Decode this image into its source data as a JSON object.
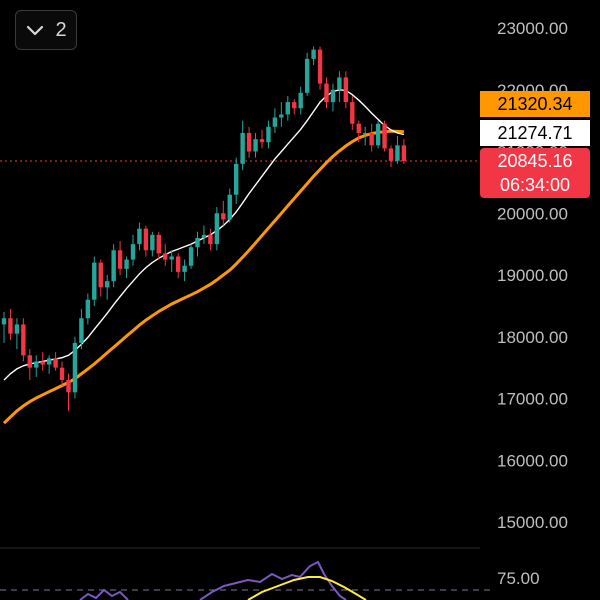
{
  "toolbar": {
    "indicator_count": "2",
    "collapse_icon": "chevron-down-icon"
  },
  "price_labels": {
    "ma_slow": {
      "value": "21320.34",
      "bg": "#ff9800",
      "fg": "#000000"
    },
    "ma_fast": {
      "value": "21274.71",
      "bg": "#ffffff",
      "fg": "#000000"
    },
    "last_price": {
      "value": "20845.16",
      "bg": "#f23645",
      "fg": "#ffffff"
    },
    "countdown": {
      "value": "06:34:00",
      "bg": "#f23645",
      "fg": "#ffffff"
    }
  },
  "colors": {
    "up": "#26a69a",
    "down": "#f23645",
    "ma_fast": "#ffffff",
    "ma_slow": "#ff9800",
    "osc_main": "#7e57c2",
    "osc_signal": "#ffeb3b"
  },
  "chart_data": {
    "type": "candlestick",
    "y_ticks": [
      "23000.00",
      "22000.00",
      "21000.00",
      "20000.00",
      "19000.00",
      "18000.00",
      "17000.00",
      "16000.00",
      "15000.00"
    ],
    "ylim": [
      15000,
      23000
    ],
    "last_price": 20845.16,
    "candles": [
      [
        18200,
        18400,
        17900,
        18300
      ],
      [
        18300,
        18450,
        17950,
        18050
      ],
      [
        18050,
        18300,
        17800,
        18200
      ],
      [
        18200,
        18300,
        17600,
        17700
      ],
      [
        17700,
        17800,
        17300,
        17500
      ],
      [
        17500,
        17700,
        17350,
        17600
      ],
      [
        17600,
        17750,
        17450,
        17550
      ],
      [
        17550,
        17700,
        17400,
        17650
      ],
      [
        17650,
        17750,
        17450,
        17500
      ],
      [
        17500,
        17600,
        17200,
        17300
      ],
      [
        17300,
        17400,
        16800,
        17100
      ],
      [
        17100,
        18000,
        17000,
        17900
      ],
      [
        17900,
        18450,
        17800,
        18300
      ],
      [
        18300,
        18700,
        18200,
        18600
      ],
      [
        18600,
        19300,
        18500,
        19200
      ],
      [
        19200,
        19250,
        18650,
        18800
      ],
      [
        18800,
        19000,
        18600,
        18900
      ],
      [
        18900,
        19500,
        18800,
        19400
      ],
      [
        19400,
        19550,
        19000,
        19100
      ],
      [
        19100,
        19300,
        18950,
        19250
      ],
      [
        19250,
        19650,
        19150,
        19500
      ],
      [
        19500,
        19850,
        19400,
        19750
      ],
      [
        19750,
        19800,
        19300,
        19400
      ],
      [
        19400,
        19700,
        19300,
        19650
      ],
      [
        19650,
        19700,
        19250,
        19350
      ],
      [
        19350,
        19500,
        19150,
        19250
      ],
      [
        19250,
        19400,
        19050,
        19300
      ],
      [
        19300,
        19350,
        18950,
        19050
      ],
      [
        19050,
        19250,
        18900,
        19150
      ],
      [
        19150,
        19500,
        19100,
        19450
      ],
      [
        19450,
        19700,
        19300,
        19600
      ],
      [
        19600,
        19800,
        19500,
        19650
      ],
      [
        19650,
        19750,
        19400,
        19500
      ],
      [
        19500,
        20100,
        19400,
        20000
      ],
      [
        20000,
        20200,
        19800,
        19900
      ],
      [
        19900,
        20400,
        19850,
        20300
      ],
      [
        20300,
        20900,
        20150,
        20800
      ],
      [
        20800,
        21500,
        20700,
        21300
      ],
      [
        21300,
        21400,
        20900,
        21000
      ],
      [
        21000,
        21300,
        20900,
        21200
      ],
      [
        21200,
        21350,
        21050,
        21150
      ],
      [
        21150,
        21500,
        21050,
        21400
      ],
      [
        21400,
        21700,
        21300,
        21550
      ],
      [
        21550,
        21800,
        21400,
        21600
      ],
      [
        21600,
        21900,
        21500,
        21800
      ],
      [
        21800,
        21850,
        21600,
        21700
      ],
      [
        21700,
        22050,
        21600,
        21950
      ],
      [
        21950,
        22600,
        21900,
        22500
      ],
      [
        22500,
        22700,
        22400,
        22650
      ],
      [
        22650,
        22700,
        22000,
        22100
      ],
      [
        22100,
        22200,
        21700,
        21800
      ],
      [
        21800,
        22100,
        21650,
        22000
      ],
      [
        22000,
        22300,
        21800,
        22200
      ],
      [
        22200,
        22300,
        21700,
        21800
      ],
      [
        21800,
        21900,
        21350,
        21450
      ],
      [
        21450,
        21500,
        21150,
        21300
      ],
      [
        21300,
        21400,
        21100,
        21300
      ],
      [
        21300,
        21450,
        21000,
        21100
      ],
      [
        21100,
        21500,
        21050,
        21450
      ],
      [
        21450,
        21500,
        21000,
        21050
      ],
      [
        21050,
        21100,
        20750,
        20850
      ],
      [
        20850,
        21250,
        20800,
        21100
      ],
      [
        21100,
        21200,
        20800,
        20845
      ]
    ],
    "ma_fast": [
      17300,
      17400,
      17480,
      17530,
      17560,
      17580,
      17600,
      17620,
      17640,
      17660,
      17700,
      17780,
      17880,
      17990,
      18120,
      18250,
      18380,
      18520,
      18650,
      18780,
      18900,
      19020,
      19120,
      19200,
      19270,
      19330,
      19380,
      19420,
      19460,
      19500,
      19550,
      19600,
      19650,
      19720,
      19800,
      19900,
      20020,
      20170,
      20320,
      20460,
      20600,
      20740,
      20880,
      21000,
      21120,
      21240,
      21360,
      21500,
      21650,
      21800,
      21900,
      21970,
      22000,
      21990,
      21920,
      21830,
      21730,
      21620,
      21520,
      21420,
      21350,
      21300,
      21275
    ],
    "ma_slow": [
      16600,
      16700,
      16800,
      16880,
      16950,
      17010,
      17060,
      17110,
      17160,
      17210,
      17260,
      17320,
      17400,
      17480,
      17560,
      17650,
      17740,
      17830,
      17920,
      18010,
      18100,
      18190,
      18270,
      18340,
      18410,
      18470,
      18530,
      18580,
      18630,
      18680,
      18730,
      18790,
      18850,
      18920,
      19000,
      19080,
      19180,
      19290,
      19400,
      19520,
      19640,
      19760,
      19880,
      20000,
      20120,
      20240,
      20360,
      20480,
      20600,
      20710,
      20820,
      20920,
      21010,
      21090,
      21160,
      21220,
      21260,
      21290,
      21310,
      21320,
      21330,
      21325,
      21320
    ],
    "oscillator": {
      "label": "75.00",
      "level": 75
    }
  }
}
